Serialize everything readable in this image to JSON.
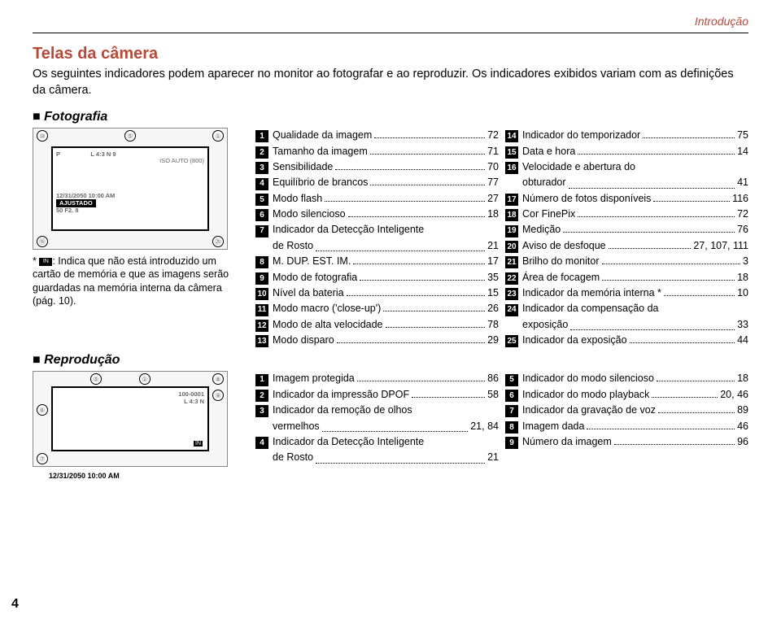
{
  "header": {
    "breadcrumb": "Introdução"
  },
  "title": "Telas da câmera",
  "intro": "Os seguintes indicadores podem aparecer no monitor ao fotografar e ao reproduzir. Os indicadores exibidos variam com as definições da câmera.",
  "foto": {
    "heading": "Fotografia",
    "note_prefix": "* ",
    "note": ": Indica que não está introduzido um cartão de memória e que as imagens serão guardadas na memória interna da câmera (pág. 10).",
    "diag_lines": [
      "P",
      "ISO AUTO (800)",
      "12/31/2050  10:00 AM",
      "AJUSTADO",
      "50   F2. 8"
    ],
    "col1": [
      {
        "n": "1",
        "t": "Qualidade da imagem",
        "p": "72"
      },
      {
        "n": "2",
        "t": "Tamanho da imagem",
        "p": "71"
      },
      {
        "n": "3",
        "t": "Sensibilidade",
        "p": "70"
      },
      {
        "n": "4",
        "t": "Equilíbrio de brancos",
        "p": "77"
      },
      {
        "n": "5",
        "t": "Modo flash",
        "p": "27"
      },
      {
        "n": "6",
        "t": "Modo silencioso",
        "p": "18"
      },
      {
        "n": "7",
        "t": "Indicador da Detecção Inteligente",
        "cont": "de Rosto",
        "p": "21"
      },
      {
        "n": "8",
        "t": "M. DUP. EST. IM.",
        "p": "17"
      },
      {
        "n": "9",
        "t": "Modo de fotografia",
        "p": "35"
      },
      {
        "n": "10",
        "t": "Nível da bateria",
        "p": "15"
      },
      {
        "n": "11",
        "t": "Modo macro ('close-up')",
        "p": "26"
      },
      {
        "n": "12",
        "t": "Modo de alta velocidade",
        "p": "78"
      },
      {
        "n": "13",
        "t": "Modo disparo",
        "p": "29"
      }
    ],
    "col2": [
      {
        "n": "14",
        "t": "Indicador do temporizador",
        "p": "75"
      },
      {
        "n": "15",
        "t": "Data e hora",
        "p": "14"
      },
      {
        "n": "16",
        "t": "Velocidade e abertura do",
        "cont": "obturador",
        "p": "41"
      },
      {
        "n": "17",
        "t": "Número de fotos disponíveis",
        "p": "116"
      },
      {
        "n": "18",
        "t": "Cor FinePix",
        "p": "72"
      },
      {
        "n": "19",
        "t": "Medição",
        "p": "76"
      },
      {
        "n": "20",
        "t": "Aviso de desfoque",
        "p": "27, 107, 111"
      },
      {
        "n": "21",
        "t": "Brilho do monitor",
        "p": "3"
      },
      {
        "n": "22",
        "t": "Área de focagem",
        "p": "18"
      },
      {
        "n": "23",
        "t": "Indicador da memória interna *",
        "p": "10"
      },
      {
        "n": "24",
        "t": "Indicador da compensação da",
        "cont": "exposição",
        "p": "33"
      },
      {
        "n": "25",
        "t": "Indicador da exposição",
        "p": "44"
      }
    ]
  },
  "repro": {
    "heading": "Reprodução",
    "diag_lines": [
      "100-0001",
      "4:3 N"
    ],
    "timestamp": "12/31/2050   10:00 AM",
    "col1": [
      {
        "n": "1",
        "t": "Imagem protegida",
        "p": "86"
      },
      {
        "n": "2",
        "t": "Indicador da impressão DPOF",
        "p": "58"
      },
      {
        "n": "3",
        "t": "Indicador da remoção de olhos",
        "cont": "vermelhos",
        "p": "21, 84"
      },
      {
        "n": "4",
        "t": "Indicador da Detecção Inteligente",
        "cont": "de Rosto",
        "p": "21"
      }
    ],
    "col2": [
      {
        "n": "5",
        "t": "Indicador do modo silencioso",
        "p": "18"
      },
      {
        "n": "6",
        "t": "Indicador do modo playback",
        "p": "20, 46"
      },
      {
        "n": "7",
        "t": "Indicador da gravação de voz",
        "p": "89"
      },
      {
        "n": "8",
        "t": "Imagem dada",
        "p": "46"
      },
      {
        "n": "9",
        "t": "Número da imagem",
        "p": "96"
      }
    ]
  },
  "pagenum": "4"
}
